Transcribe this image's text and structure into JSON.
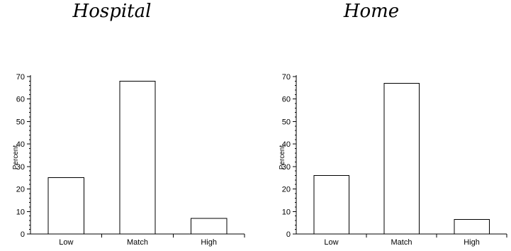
{
  "chart_data": [
    {
      "type": "bar",
      "title": "Hospital",
      "xlabel": "",
      "ylabel": "Percent",
      "categories": [
        "Low",
        "Match",
        "High"
      ],
      "values": [
        25,
        68,
        7
      ],
      "ylim": [
        0,
        70
      ],
      "yticks": [
        0,
        10,
        20,
        30,
        40,
        50,
        60,
        70
      ],
      "grid": false
    },
    {
      "type": "bar",
      "title": "Home",
      "xlabel": "",
      "ylabel": "Percent",
      "categories": [
        "Low",
        "Match",
        "High"
      ],
      "values": [
        26,
        67,
        6.5
      ],
      "ylim": [
        0,
        70
      ],
      "yticks": [
        0,
        10,
        20,
        30,
        40,
        50,
        60,
        70
      ],
      "grid": false
    }
  ]
}
